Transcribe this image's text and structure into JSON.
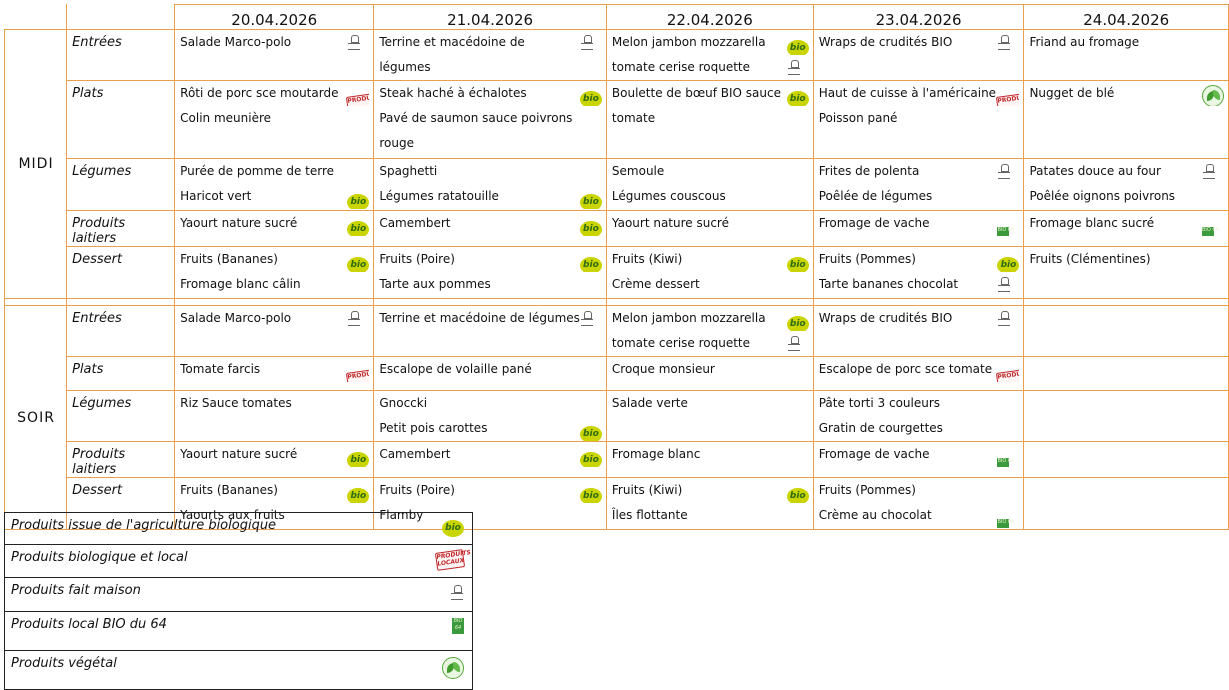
{
  "dates": [
    "20.04.2026",
    "21.04.2026",
    "22.04.2026",
    "23.04.2026",
    "24.04.2026"
  ],
  "midi": {
    "label": "MIDI",
    "rows": [
      {
        "category": "Entrées",
        "cells": [
          [
            {
              "text": "Salade Marco-polo",
              "icon": "fait-maison"
            }
          ],
          [
            {
              "text": "Terrine et macédoine de",
              "icon": "fait-maison"
            },
            {
              "text": "légumes"
            }
          ],
          [
            {
              "text": "Melon jambon mozzarella",
              "icon": "bio"
            },
            {
              "text": "tomate cerise roquette",
              "icon": "fait-maison"
            }
          ],
          [
            {
              "text": "Wraps de crudités BIO",
              "icon": "fait-maison"
            }
          ],
          [
            {
              "text": "Friand au fromage"
            }
          ]
        ]
      },
      {
        "category": "Plats",
        "cells": [
          [
            {
              "text": "Rôti de porc sce moutarde",
              "icon": "bio-local"
            },
            {
              "text": "Colin meunière"
            }
          ],
          [
            {
              "text": "Steak haché à échalotes",
              "icon": "bio"
            },
            {
              "text": "Pavé de saumon sauce poivrons"
            },
            {
              "text": "rouge"
            }
          ],
          [
            {
              "text": "Boulette de bœuf BIO sauce",
              "icon": "bio"
            },
            {
              "text": "tomate"
            }
          ],
          [
            {
              "text": "Haut de cuisse à l'américaine",
              "icon": "bio-local"
            },
            {
              "text": "Poisson pané"
            }
          ],
          [
            {
              "text": "Nugget de blé",
              "icon": "vegetal"
            }
          ]
        ]
      },
      {
        "category": "Légumes",
        "cells": [
          [
            {
              "text": "Purée de pomme de terre"
            },
            {
              "text": "Haricot vert",
              "icon": "bio"
            }
          ],
          [
            {
              "text": "Spaghetti"
            },
            {
              "text": "Légumes ratatouille",
              "icon": "bio"
            }
          ],
          [
            {
              "text": "Semoule"
            },
            {
              "text": "Légumes couscous"
            }
          ],
          [
            {
              "text": "Frites de polenta",
              "icon": "fait-maison"
            },
            {
              "text": "Poêlée de légumes"
            }
          ],
          [
            {
              "text": "Patates douce au four",
              "icon": "fait-maison"
            },
            {
              "text": "Poêlée oignons poivrons"
            }
          ]
        ]
      },
      {
        "category": "Produits laitiers",
        "cells": [
          [
            {
              "text": "Yaourt nature sucré",
              "icon": "bio"
            }
          ],
          [
            {
              "text": "Camembert",
              "icon": "bio"
            }
          ],
          [
            {
              "text": "Yaourt nature sucré"
            }
          ],
          [
            {
              "text": "Fromage de vache",
              "icon": "bio-64"
            }
          ],
          [
            {
              "text": "Fromage blanc sucré",
              "icon": "bio-64"
            }
          ]
        ]
      },
      {
        "category": "Dessert",
        "cells": [
          [
            {
              "text": "Fruits (Bananes)",
              "icon": "bio"
            },
            {
              "text": "Fromage blanc câlin"
            }
          ],
          [
            {
              "text": "Fruits (Poire)",
              "icon": "bio"
            },
            {
              "text": "Tarte aux pommes"
            }
          ],
          [
            {
              "text": "Fruits (Kiwi)",
              "icon": "bio"
            },
            {
              "text": "Crème dessert"
            }
          ],
          [
            {
              "text": "Fruits (Pommes)",
              "icon": "bio"
            },
            {
              "text": "Tarte bananes chocolat",
              "icon": "fait-maison"
            }
          ],
          [
            {
              "text": "Fruits (Clémentines)"
            }
          ]
        ]
      }
    ]
  },
  "soir": {
    "label": "SOIR",
    "rows": [
      {
        "category": "Entrées",
        "cells": [
          [
            {
              "text": "Salade Marco-polo",
              "icon": "fait-maison"
            }
          ],
          [
            {
              "text": "Terrine et macédoine de légumes",
              "icon": "fait-maison"
            }
          ],
          [
            {
              "text": "Melon jambon mozzarella",
              "icon": "bio"
            },
            {
              "text": "tomate cerise roquette",
              "icon": "fait-maison"
            }
          ],
          [
            {
              "text": "Wraps de crudités BIO",
              "icon": "fait-maison"
            }
          ],
          []
        ]
      },
      {
        "category": "Plats",
        "cells": [
          [
            {
              "text": "Tomate farcis",
              "icon": "bio-local"
            }
          ],
          [
            {
              "text": "Escalope de volaille pané"
            }
          ],
          [
            {
              "text": "Croque monsieur"
            }
          ],
          [
            {
              "text": "Escalope de porc sce tomate",
              "icon": "bio-local"
            }
          ],
          []
        ]
      },
      {
        "category": "Légumes",
        "cells": [
          [
            {
              "text": "Riz Sauce tomates"
            }
          ],
          [
            {
              "text": "Gnoccki"
            },
            {
              "text": "Petit pois carottes",
              "icon": "bio"
            }
          ],
          [
            {
              "text": "Salade verte"
            }
          ],
          [
            {
              "text": "Pâte torti 3 couleurs"
            },
            {
              "text": "Gratin de courgettes"
            }
          ],
          []
        ]
      },
      {
        "category": "Produits laitiers",
        "cells": [
          [
            {
              "text": "Yaourt nature sucré",
              "icon": "bio"
            }
          ],
          [
            {
              "text": "Camembert",
              "icon": "bio"
            }
          ],
          [
            {
              "text": "Fromage blanc"
            }
          ],
          [
            {
              "text": "Fromage de vache",
              "icon": "bio-64"
            }
          ],
          []
        ]
      },
      {
        "category": "Dessert",
        "cells": [
          [
            {
              "text": "Fruits (Bananes)",
              "icon": "bio"
            },
            {
              "text": "Yaourts aux fruits"
            }
          ],
          [
            {
              "text": "Fruits (Poire)",
              "icon": "bio"
            },
            {
              "text": "Flamby"
            }
          ],
          [
            {
              "text": "Fruits (Kiwi)",
              "icon": "bio"
            },
            {
              "text": "Îles flottante"
            }
          ],
          [
            {
              "text": "Fruits (Pommes)"
            },
            {
              "text": "Crème au chocolat",
              "icon": "bio-64"
            }
          ],
          []
        ]
      }
    ]
  },
  "legend": [
    {
      "label": "Produits issue de l'agriculture biologique",
      "icon": "bio"
    },
    {
      "label": "Produits biologique et local",
      "icon": "bio-local"
    },
    {
      "label": "Produits fait maison",
      "icon": "fait-maison"
    },
    {
      "label": "Produits local BIO du 64",
      "icon": "bio-64"
    },
    {
      "label": "Produits végétal",
      "icon": "vegetal"
    }
  ],
  "icon_logo_text": {
    "bio": "bio",
    "bio-local": "PRODUITS LOCAUX",
    "bio-64": "BIO 64"
  },
  "colors": {
    "grid": "#e8a04a",
    "bio": "#c9d400",
    "bio_local": "#c0262a",
    "bio_64": "#3b9a3b",
    "vegetal": "#56a83a"
  }
}
